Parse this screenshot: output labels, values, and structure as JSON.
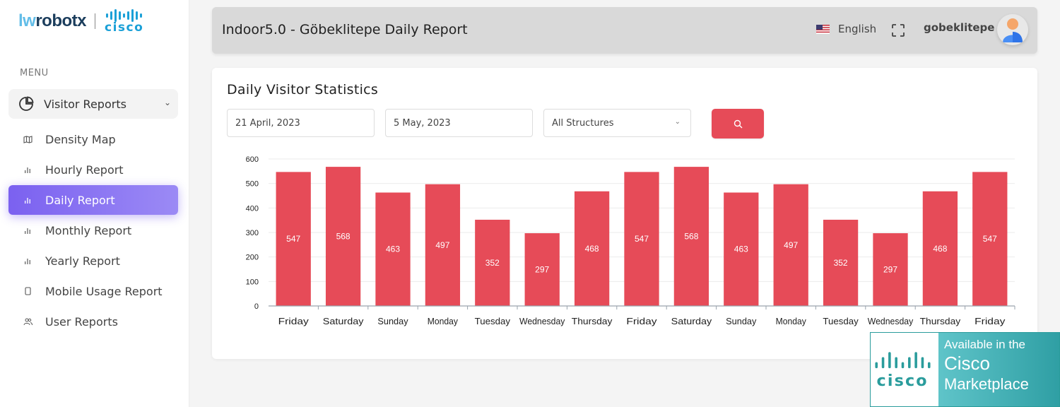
{
  "brand": {
    "name_part1": "lw",
    "name_part2": "robotx",
    "partner": "cisco"
  },
  "sidebar": {
    "menu_label": "MENU",
    "parent": {
      "label": "Visitor Reports",
      "icon": "pie-chart-icon",
      "expanded": true
    },
    "items": [
      {
        "label": "Density Map",
        "icon": "map-icon",
        "active": false
      },
      {
        "label": "Hourly Report",
        "icon": "bar-chart-icon",
        "active": false
      },
      {
        "label": "Daily Report",
        "icon": "bar-chart-icon",
        "active": true
      },
      {
        "label": "Monthly Report",
        "icon": "bar-chart-icon",
        "active": false
      },
      {
        "label": "Yearly Report",
        "icon": "bar-chart-icon",
        "active": false
      },
      {
        "label": "Mobile Usage Report",
        "icon": "mobile-icon",
        "active": false
      },
      {
        "label": "User Reports",
        "icon": "users-icon",
        "active": false
      }
    ]
  },
  "header": {
    "title": "Indoor5.0 - Göbeklitepe Daily Report",
    "language": "English",
    "username": "gobeklitepe"
  },
  "card": {
    "title": "Daily Visitor Statistics",
    "start_date": "21 April, 2023",
    "end_date": "5 May, 2023",
    "structure_select": "All Structures"
  },
  "colors": {
    "bar": "#e64b58",
    "accent": "#7b61f0",
    "overlay": "#3aa9ae"
  },
  "chart_data": {
    "type": "bar",
    "title": "Daily Visitor Statistics",
    "xlabel": "",
    "ylabel": "",
    "ylim": [
      0,
      600
    ],
    "yticks": [
      0,
      100,
      200,
      300,
      400,
      500,
      600
    ],
    "grid": true,
    "categories": [
      "Friday",
      "Saturday",
      "Sunday",
      "Monday",
      "Tuesday",
      "Wednesday",
      "Thursday",
      "Friday",
      "Saturday",
      "Sunday",
      "Monday",
      "Tuesday",
      "Wednesday",
      "Thursday",
      "Friday"
    ],
    "values": [
      547,
      568,
      463,
      497,
      352,
      297,
      468,
      547,
      568,
      463,
      497,
      352,
      297,
      468,
      547
    ]
  },
  "overlay": {
    "logo": "cisco",
    "line1": "Available in the",
    "line2": "Cisco",
    "line3": "Marketplace"
  }
}
